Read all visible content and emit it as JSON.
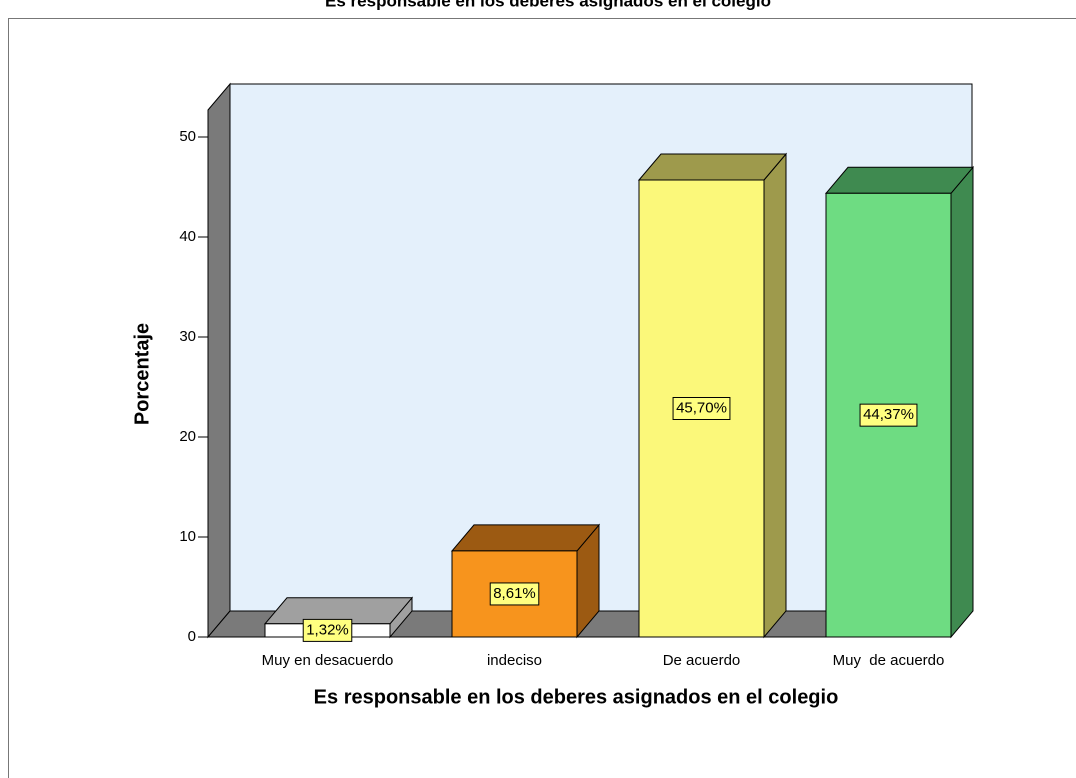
{
  "chart_data": {
    "type": "bar3d",
    "title": "Es responsable en los deberes asignados en el colegio",
    "x_label": "Es responsable en los deberes asignados en el colegio",
    "y_label": "Porcentaje",
    "categories": [
      "Muy en desacuerdo",
      "indeciso",
      "De acuerdo",
      "Muy  de acuerdo"
    ],
    "values": [
      1.32,
      8.61,
      45.7,
      44.37
    ],
    "value_labels": [
      "1,32%",
      "8,61%",
      "45,70%",
      "44,37%"
    ],
    "colors": [
      "#ffffff",
      "#f7941d",
      "#fbf87a",
      "#6edc82"
    ],
    "side_colors": [
      "#a0a0a0",
      "#9c5a12",
      "#9e9a4c",
      "#3f8a50"
    ],
    "ylim": [
      0,
      52.7
    ],
    "yticks": [
      0,
      10,
      20,
      30,
      40,
      50
    ]
  }
}
